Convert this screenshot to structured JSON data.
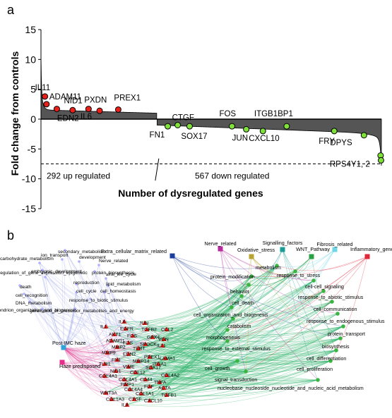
{
  "panels": {
    "a_label": "a",
    "b_label": "b"
  },
  "chart_data": [
    {
      "type": "area",
      "panel": "a",
      "title": "",
      "xlabel": "Number of dysregulated genes",
      "ylabel": "Fold change from controls",
      "ylim": [
        -15,
        15
      ],
      "yticks": [
        15,
        10,
        5,
        0,
        -5,
        -10,
        -15
      ],
      "n_genes": 859,
      "grid": false,
      "threshold_line": {
        "y": -7.5,
        "style": "dashed"
      },
      "regions": [
        {
          "label": "292 up regulated",
          "count": 292
        },
        {
          "label": "567 down regulated",
          "count": 567
        }
      ],
      "highlighted_up": [
        {
          "name": "IL11",
          "rank": 10,
          "value": 3.8
        },
        {
          "name": "ADAM11",
          "rank": 14,
          "value": 2.5
        },
        {
          "name": "NID1",
          "rank": 40,
          "value": 1.7
        },
        {
          "name": "EDN2",
          "rank": 80,
          "value": 1.5
        },
        {
          "name": "PXDN",
          "rank": 120,
          "value": 1.7
        },
        {
          "name": "IL6",
          "rank": 148,
          "value": 1.4
        },
        {
          "name": "PREX1",
          "rank": 195,
          "value": 1.6
        }
      ],
      "highlighted_down": [
        {
          "name": "FN1",
          "rank": 320,
          "value": -1.2
        },
        {
          "name": "CTGF",
          "rank": 345,
          "value": -1.0
        },
        {
          "name": "SOX17",
          "rank": 375,
          "value": -1.2
        },
        {
          "name": "FOS",
          "rank": 482,
          "value": -1.2
        },
        {
          "name": "JUN",
          "rank": 518,
          "value": -1.7
        },
        {
          "name": "CXCL10",
          "rank": 560,
          "value": -2.0
        },
        {
          "name": "ITGB1BP1",
          "rank": 620,
          "value": -1.2
        },
        {
          "name": "FRY",
          "rank": 740,
          "value": -2.0
        },
        {
          "name": "DPYS",
          "rank": 815,
          "value": -2.7
        },
        {
          "name": "RPS4Y1, 2",
          "rank": 857,
          "value": -6.1
        },
        {
          "name": "",
          "rank": 858,
          "value": -6.9
        }
      ],
      "colors": {
        "area": "#555555",
        "up_point": "#e8201a",
        "down_point": "#7fe03a",
        "outline": "#000000"
      }
    },
    {
      "type": "network",
      "panel": "b",
      "hubs": [
        {
          "label": "Extra_cellular_matrix_related",
          "color": "#1c3d9c"
        },
        {
          "label": "Nerve_related",
          "color": "#b8289f"
        },
        {
          "label": "Oxidative_stress",
          "color": "#b8a431"
        },
        {
          "label": "Signalling_factors",
          "color": "#1a9c96"
        },
        {
          "label": "WNT_Pathway",
          "color": "#27a046"
        },
        {
          "label": "Fibrosis_related",
          "color": "#6fd6e6"
        },
        {
          "label": "Inflammatory_genes",
          "color": "#e0283a"
        },
        {
          "label": "Post-IMC haze",
          "color": "#2fa4d8"
        },
        {
          "label": "Haze predisposed",
          "color": "#e62e8a"
        }
      ],
      "gene_nodes": [
        "IL6",
        "JUN",
        "IL1",
        "EGFR",
        "TGFB2",
        "CCL2",
        "AKT1",
        "FOS",
        "GPX4",
        "VGN",
        "ADAM11",
        "FOS",
        "SPOCK",
        "IL11",
        "MMP2",
        "TERT",
        "MMP9",
        "EDN2",
        "PREX1",
        "LAMA1",
        "FN1",
        "MMP14",
        "ITGA1",
        "TLR1",
        "VIME",
        "SOX17",
        "NID1",
        "COL12",
        "COL4A1",
        "COL4A2",
        "COL4A1",
        "CD44",
        "TNFA",
        "TIMP1",
        "FGF",
        "COL4A4",
        "ACTA",
        "WNT3A",
        "COL1A1",
        "TGFB1",
        "COL1A3",
        "CTGF",
        "CXCL10",
        "IL8"
      ],
      "left_terms": [
        "secondary_metabolism",
        "ion_transport",
        "development",
        "carbohydrate_metabolism",
        "Nerve_related",
        "embryonic_development",
        "protein_biosynthesis",
        "regulation_of_gene_expression_epigenetic",
        "viral_life_cycle",
        "death",
        "reproduction",
        "lipid_metabolism",
        "cell_recognition",
        "cell_cycle",
        "cell_homeostasis",
        "DNA_metabolism",
        "response_to_biotic_stimulus",
        "mitochondrion_organization_and_biogenesis",
        "generation_of_precursor_metabolites_and_energy"
      ],
      "right_terms": [
        "protein_modification",
        "metabolism",
        "response_to_stress",
        "behavior",
        "cell-cell_signaling",
        "cell_death",
        "response_to_abiotic_stimulus",
        "cell_organization_and_biogenesis",
        "cell_communication",
        "catabolism",
        "response_to_endogenous_stimulus",
        "morphogenesis",
        "protein_transport",
        "response_to_external_stimulus",
        "biosynthesis",
        "cell_differentiation",
        "cell_growth",
        "cell_proliferation",
        "signal_transduction",
        "nucleobase_nucleoside_nucleotide_and_nucleic_acid_metabolism"
      ],
      "colors": {
        "gene_node": "#e8201a",
        "term_node": "#3ab542",
        "left_term_node": "#b0b0ff",
        "edge_main": "#2db36a",
        "edge_left": "#9fa6e8",
        "edge_pink": "#e64d9a"
      }
    }
  ]
}
